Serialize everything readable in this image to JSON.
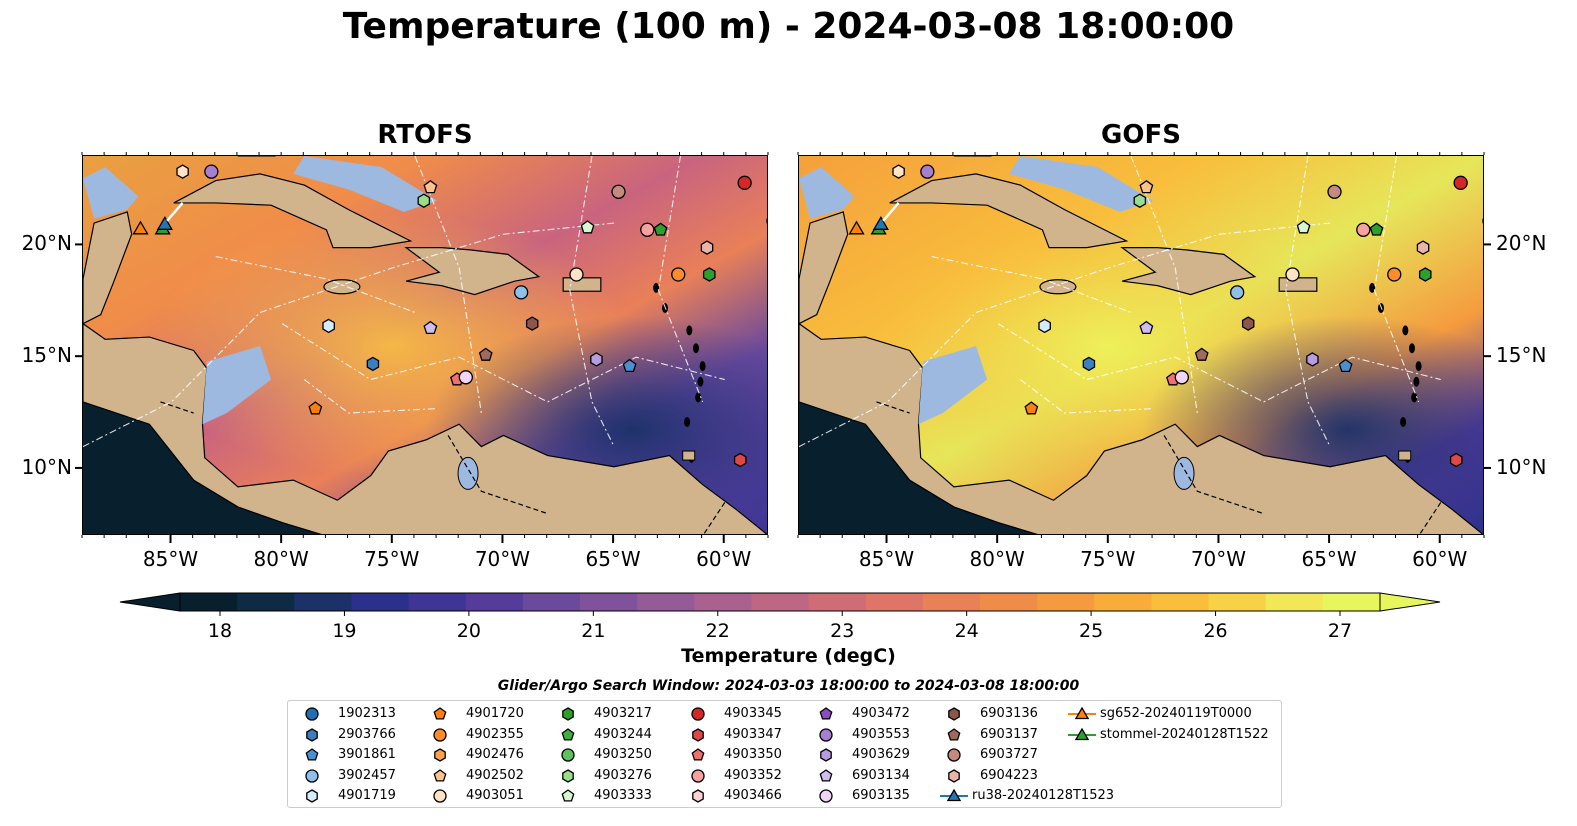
{
  "title": "Temperature (100 m) - 2024-03-08 18:00:00",
  "panels": [
    {
      "title": "RTOFS",
      "variant": "rtofs"
    },
    {
      "title": "GOFS",
      "variant": "gofs"
    }
  ],
  "lon_ticks": [
    "85°W",
    "80°W",
    "75°W",
    "70°W",
    "65°W",
    "60°W"
  ],
  "lat_ticks": [
    "20°N",
    "15°N",
    "10°N"
  ],
  "colorbar": {
    "label": "Temperature (degC)",
    "ticks": [
      "18",
      "19",
      "20",
      "21",
      "22",
      "23",
      "24",
      "25",
      "26",
      "27"
    ],
    "min": 18,
    "max": 27,
    "extend": "both",
    "colors": [
      "#081f2e",
      "#0f2a44",
      "#1b3168",
      "#2b318a",
      "#3e3595",
      "#553b9a",
      "#6b4a9c",
      "#80529c",
      "#955a98",
      "#a9618f",
      "#bd6784",
      "#cf6d76",
      "#de7567",
      "#e98058",
      "#f08c4a",
      "#f59b3f",
      "#f8ac3a",
      "#f9be3c",
      "#f8d246",
      "#f2e756",
      "#e6f65c"
    ]
  },
  "colors": {
    "land": "#d2b48c",
    "shallow_water": "#9db9e0",
    "pacific": "#081f2e"
  },
  "search_window": "Glider/Argo Search Window: 2024-03-03 18:00:00 to 2024-03-08 18:00:00",
  "legend": [
    {
      "label": "1902313",
      "marker": "circle",
      "color": "#1f6fb2"
    },
    {
      "label": "2903766",
      "marker": "hexagon",
      "color": "#3a7fc0"
    },
    {
      "label": "3901861",
      "marker": "pentagon",
      "color": "#4a8fd0"
    },
    {
      "label": "3902457",
      "marker": "circle",
      "color": "#8fc0ea"
    },
    {
      "label": "4901719",
      "marker": "hexagon",
      "color": "#d5ecfb"
    },
    {
      "label": "4901720",
      "marker": "pentagon",
      "color": "#ff7f0e"
    },
    {
      "label": "4902355",
      "marker": "circle",
      "color": "#ff8c2a"
    },
    {
      "label": "4902476",
      "marker": "hexagon",
      "color": "#ffa04a"
    },
    {
      "label": "4902502",
      "marker": "pentagon",
      "color": "#ffc28a"
    },
    {
      "label": "4903051",
      "marker": "circle",
      "color": "#ffe3c4"
    },
    {
      "label": "4903217",
      "marker": "hexagon",
      "color": "#2ca02c"
    },
    {
      "label": "4903244",
      "marker": "pentagon",
      "color": "#3cb03c"
    },
    {
      "label": "4903250",
      "marker": "circle",
      "color": "#5ec35e"
    },
    {
      "label": "4903276",
      "marker": "hexagon",
      "color": "#98df8a"
    },
    {
      "label": "4903333",
      "marker": "pentagon",
      "color": "#d8f7d0"
    },
    {
      "label": "4903345",
      "marker": "circle",
      "color": "#d62728"
    },
    {
      "label": "4903347",
      "marker": "hexagon",
      "color": "#e04848"
    },
    {
      "label": "4903350",
      "marker": "pentagon",
      "color": "#f07070"
    },
    {
      "label": "4903352",
      "marker": "circle",
      "color": "#f7a1a1"
    },
    {
      "label": "4903466",
      "marker": "hexagon",
      "color": "#fcd2d2"
    },
    {
      "label": "4903472",
      "marker": "pentagon",
      "color": "#8b4fc0"
    },
    {
      "label": "4903553",
      "marker": "circle",
      "color": "#a77fd0"
    },
    {
      "label": "4903629",
      "marker": "hexagon",
      "color": "#b79ce0"
    },
    {
      "label": "6903134",
      "marker": "pentagon",
      "color": "#d0bdf0"
    },
    {
      "label": "6903135",
      "marker": "circle",
      "color": "#f0d5f7"
    },
    {
      "label": "6903136",
      "marker": "hexagon",
      "color": "#8c564b"
    },
    {
      "label": "6903137",
      "marker": "pentagon",
      "color": "#a0695d"
    },
    {
      "label": "6903727",
      "marker": "circle",
      "color": "#c48a7e"
    },
    {
      "label": "6904223",
      "marker": "hexagon",
      "color": "#e9b5a8"
    },
    {
      "label": "ru38-20240128T1523",
      "marker": "triangle-line",
      "color": "#1f77b4"
    },
    {
      "label": "sg652-20240119T0000",
      "marker": "triangle-line",
      "color": "#ff7f0e"
    },
    {
      "label": "stommel-20240128T1522",
      "marker": "triangle-line",
      "color": "#2ca02c"
    }
  ],
  "floats": [
    {
      "lon": -84.5,
      "lat": 23.3,
      "color": "#ffe3c4",
      "marker": "hexagon"
    },
    {
      "lon": -83.2,
      "lat": 23.3,
      "color": "#a77fd0",
      "marker": "circle"
    },
    {
      "lon": -73.3,
      "lat": 22.6,
      "color": "#ffc28a",
      "marker": "pentagon"
    },
    {
      "lon": -73.6,
      "lat": 22.0,
      "color": "#98df8a",
      "marker": "hexagon"
    },
    {
      "lon": -64.8,
      "lat": 22.4,
      "color": "#c48a7e",
      "marker": "circle"
    },
    {
      "lon": -59.1,
      "lat": 22.8,
      "color": "#d62728",
      "marker": "circle"
    },
    {
      "lon": -57.8,
      "lat": 21.1,
      "color": "#1f6fb2",
      "marker": "circle"
    },
    {
      "lon": -66.2,
      "lat": 20.8,
      "color": "#d8f7d0",
      "marker": "pentagon"
    },
    {
      "lon": -63.5,
      "lat": 20.7,
      "color": "#f7a1a1",
      "marker": "circle"
    },
    {
      "lon": -62.9,
      "lat": 20.7,
      "color": "#2ca02c",
      "marker": "pentagon"
    },
    {
      "lon": -60.8,
      "lat": 19.9,
      "color": "#e9b5a8",
      "marker": "hexagon"
    },
    {
      "lon": -66.7,
      "lat": 18.7,
      "color": "#ffe3c4",
      "marker": "circle"
    },
    {
      "lon": -62.1,
      "lat": 18.7,
      "color": "#ff8c2a",
      "marker": "circle"
    },
    {
      "lon": -60.7,
      "lat": 18.7,
      "color": "#2ca02c",
      "marker": "hexagon"
    },
    {
      "lon": -69.2,
      "lat": 17.9,
      "color": "#8fc0ea",
      "marker": "circle"
    },
    {
      "lon": -77.9,
      "lat": 16.4,
      "color": "#d5ecfb",
      "marker": "hexagon"
    },
    {
      "lon": -73.3,
      "lat": 16.3,
      "color": "#d0bdf0",
      "marker": "pentagon"
    },
    {
      "lon": -68.7,
      "lat": 16.5,
      "color": "#8c564b",
      "marker": "hexagon"
    },
    {
      "lon": -70.8,
      "lat": 15.1,
      "color": "#a0695d",
      "marker": "pentagon"
    },
    {
      "lon": -65.8,
      "lat": 14.9,
      "color": "#b79ce0",
      "marker": "hexagon"
    },
    {
      "lon": -75.9,
      "lat": 14.7,
      "color": "#3a7fc0",
      "marker": "hexagon"
    },
    {
      "lon": -64.3,
      "lat": 14.6,
      "color": "#4a8fd0",
      "marker": "pentagon"
    },
    {
      "lon": -72.1,
      "lat": 14.0,
      "color": "#f07070",
      "marker": "pentagon"
    },
    {
      "lon": -71.7,
      "lat": 14.1,
      "color": "#f0d5f7",
      "marker": "circle"
    },
    {
      "lon": -78.5,
      "lat": 12.7,
      "color": "#ff7f0e",
      "marker": "pentagon"
    },
    {
      "lon": -59.3,
      "lat": 10.4,
      "color": "#e04848",
      "marker": "hexagon"
    }
  ],
  "gliders": [
    {
      "lon": -86.4,
      "lat": 20.7,
      "color": "#ff7f0e"
    },
    {
      "lon": -85.4,
      "lat": 20.7,
      "color": "#2ca02c"
    },
    {
      "lon": -85.3,
      "lat": 20.9,
      "color": "#1f77b4"
    }
  ]
}
